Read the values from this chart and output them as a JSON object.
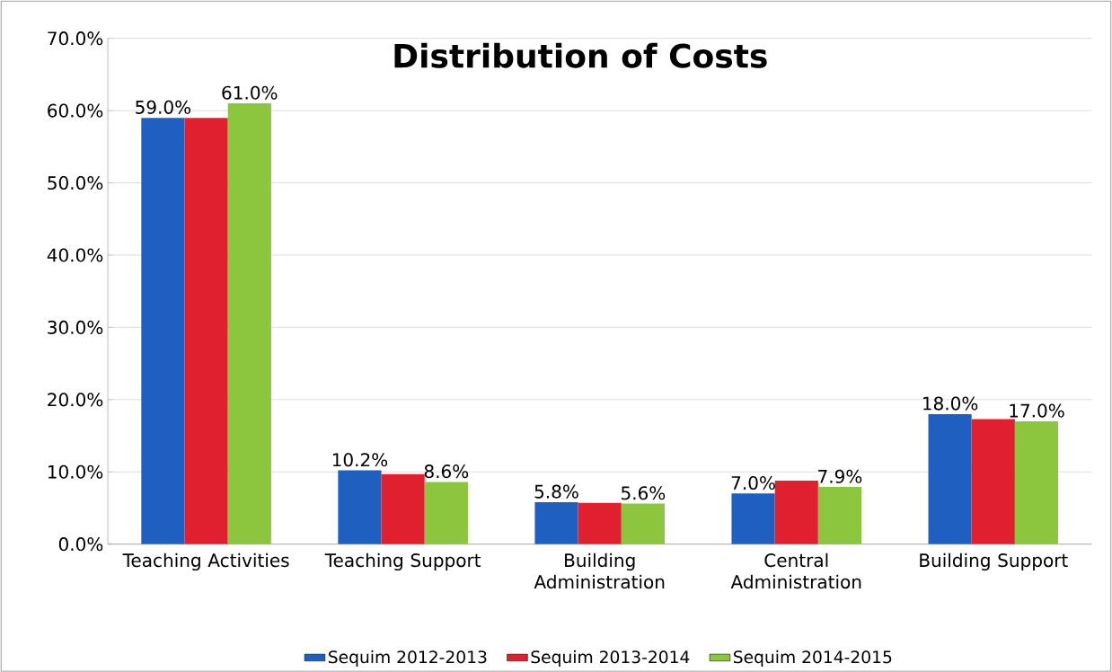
{
  "chart_data": {
    "type": "bar",
    "title": "Distribution of Costs",
    "categories": [
      "Teaching Activities",
      "Teaching Support",
      "Building Administration",
      "Central Administration",
      "Building Support"
    ],
    "series": [
      {
        "name": "Sequim 2012-2013",
        "color": "#1f5fbf",
        "values": [
          59.0,
          10.2,
          5.8,
          7.0,
          18.0
        ],
        "value_labels": [
          "59.0%",
          "10.2%",
          "5.8%",
          "7.0%",
          "18.0%"
        ]
      },
      {
        "name": "Sequim 2013-2014",
        "color": "#e0202e",
        "values": [
          59.0,
          9.7,
          5.7,
          8.8,
          17.3
        ]
      },
      {
        "name": "Sequim 2014-2015",
        "color": "#8cc63f",
        "values": [
          61.0,
          8.6,
          5.6,
          7.9,
          17.0
        ],
        "value_labels": [
          "61.0%",
          "8.6%",
          "5.6%",
          "7.9%",
          "17.0%"
        ]
      }
    ],
    "ylim": [
      0,
      70
    ],
    "yticks": [
      {
        "value": 0,
        "label": "0.0%"
      },
      {
        "value": 10,
        "label": "10.0%"
      },
      {
        "value": 20,
        "label": "20.0%"
      },
      {
        "value": 30,
        "label": "30.0%"
      },
      {
        "value": 40,
        "label": "40.0%"
      },
      {
        "value": 50,
        "label": "50.0%"
      },
      {
        "value": 60,
        "label": "60.0%"
      },
      {
        "value": 70,
        "label": "70.0%"
      }
    ],
    "grid": "y",
    "legend": "bottom"
  }
}
